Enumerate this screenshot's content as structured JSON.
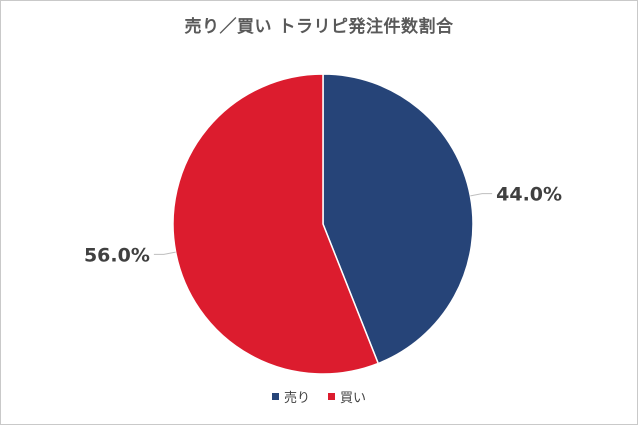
{
  "chart_data": {
    "type": "pie",
    "title": "売り／買い トラリピ発注件数割合",
    "categories": [
      "売り",
      "買い"
    ],
    "values": [
      44.0,
      56.0
    ],
    "labels": [
      "44.0%",
      "56.0%"
    ],
    "colors": [
      "#264478",
      "#dc1c2e"
    ],
    "legend_position": "bottom"
  }
}
